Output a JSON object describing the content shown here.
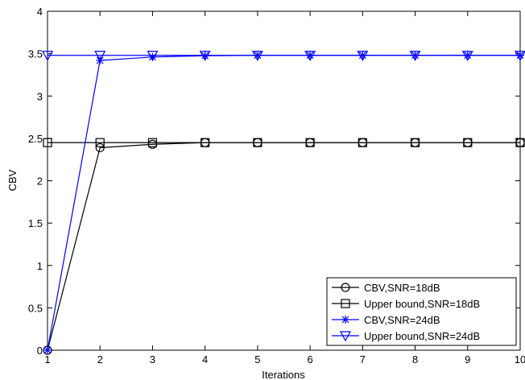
{
  "chart_data": {
    "type": "line",
    "title": "",
    "xlabel": "Iterations",
    "ylabel": "CBV",
    "xlim": [
      1,
      10
    ],
    "ylim": [
      0,
      4
    ],
    "xticks": [
      1,
      2,
      3,
      4,
      5,
      6,
      7,
      8,
      9,
      10
    ],
    "yticks": [
      0,
      0.5,
      1,
      1.5,
      2,
      2.5,
      3,
      3.5,
      4
    ],
    "ytick_labels": [
      "0",
      "0.5",
      "1",
      "1.5",
      "2",
      "2.5",
      "3",
      "3.5",
      "4"
    ],
    "grid": false,
    "legend_position": "bottom-right",
    "x": [
      1,
      2,
      3,
      4,
      5,
      6,
      7,
      8,
      9,
      10
    ],
    "series": [
      {
        "name": "CBV,SNR=18dB",
        "color": "#000000",
        "marker": "circle",
        "values": [
          0,
          2.39,
          2.43,
          2.45,
          2.45,
          2.45,
          2.45,
          2.45,
          2.45,
          2.45
        ]
      },
      {
        "name": "Upper bound,SNR=18dB",
        "color": "#000000",
        "marker": "square",
        "values": [
          2.45,
          2.45,
          2.45,
          2.45,
          2.45,
          2.45,
          2.45,
          2.45,
          2.45,
          2.45
        ]
      },
      {
        "name": "CBV,SNR=24dB",
        "color": "#0000ff",
        "marker": "asterisk",
        "values": [
          0,
          3.42,
          3.46,
          3.475,
          3.48,
          3.48,
          3.48,
          3.48,
          3.48,
          3.48
        ]
      },
      {
        "name": "Upper bound,SNR=24dB",
        "color": "#0000ff",
        "marker": "triangle-down",
        "values": [
          3.48,
          3.48,
          3.48,
          3.48,
          3.48,
          3.48,
          3.48,
          3.48,
          3.48,
          3.48
        ]
      }
    ]
  }
}
